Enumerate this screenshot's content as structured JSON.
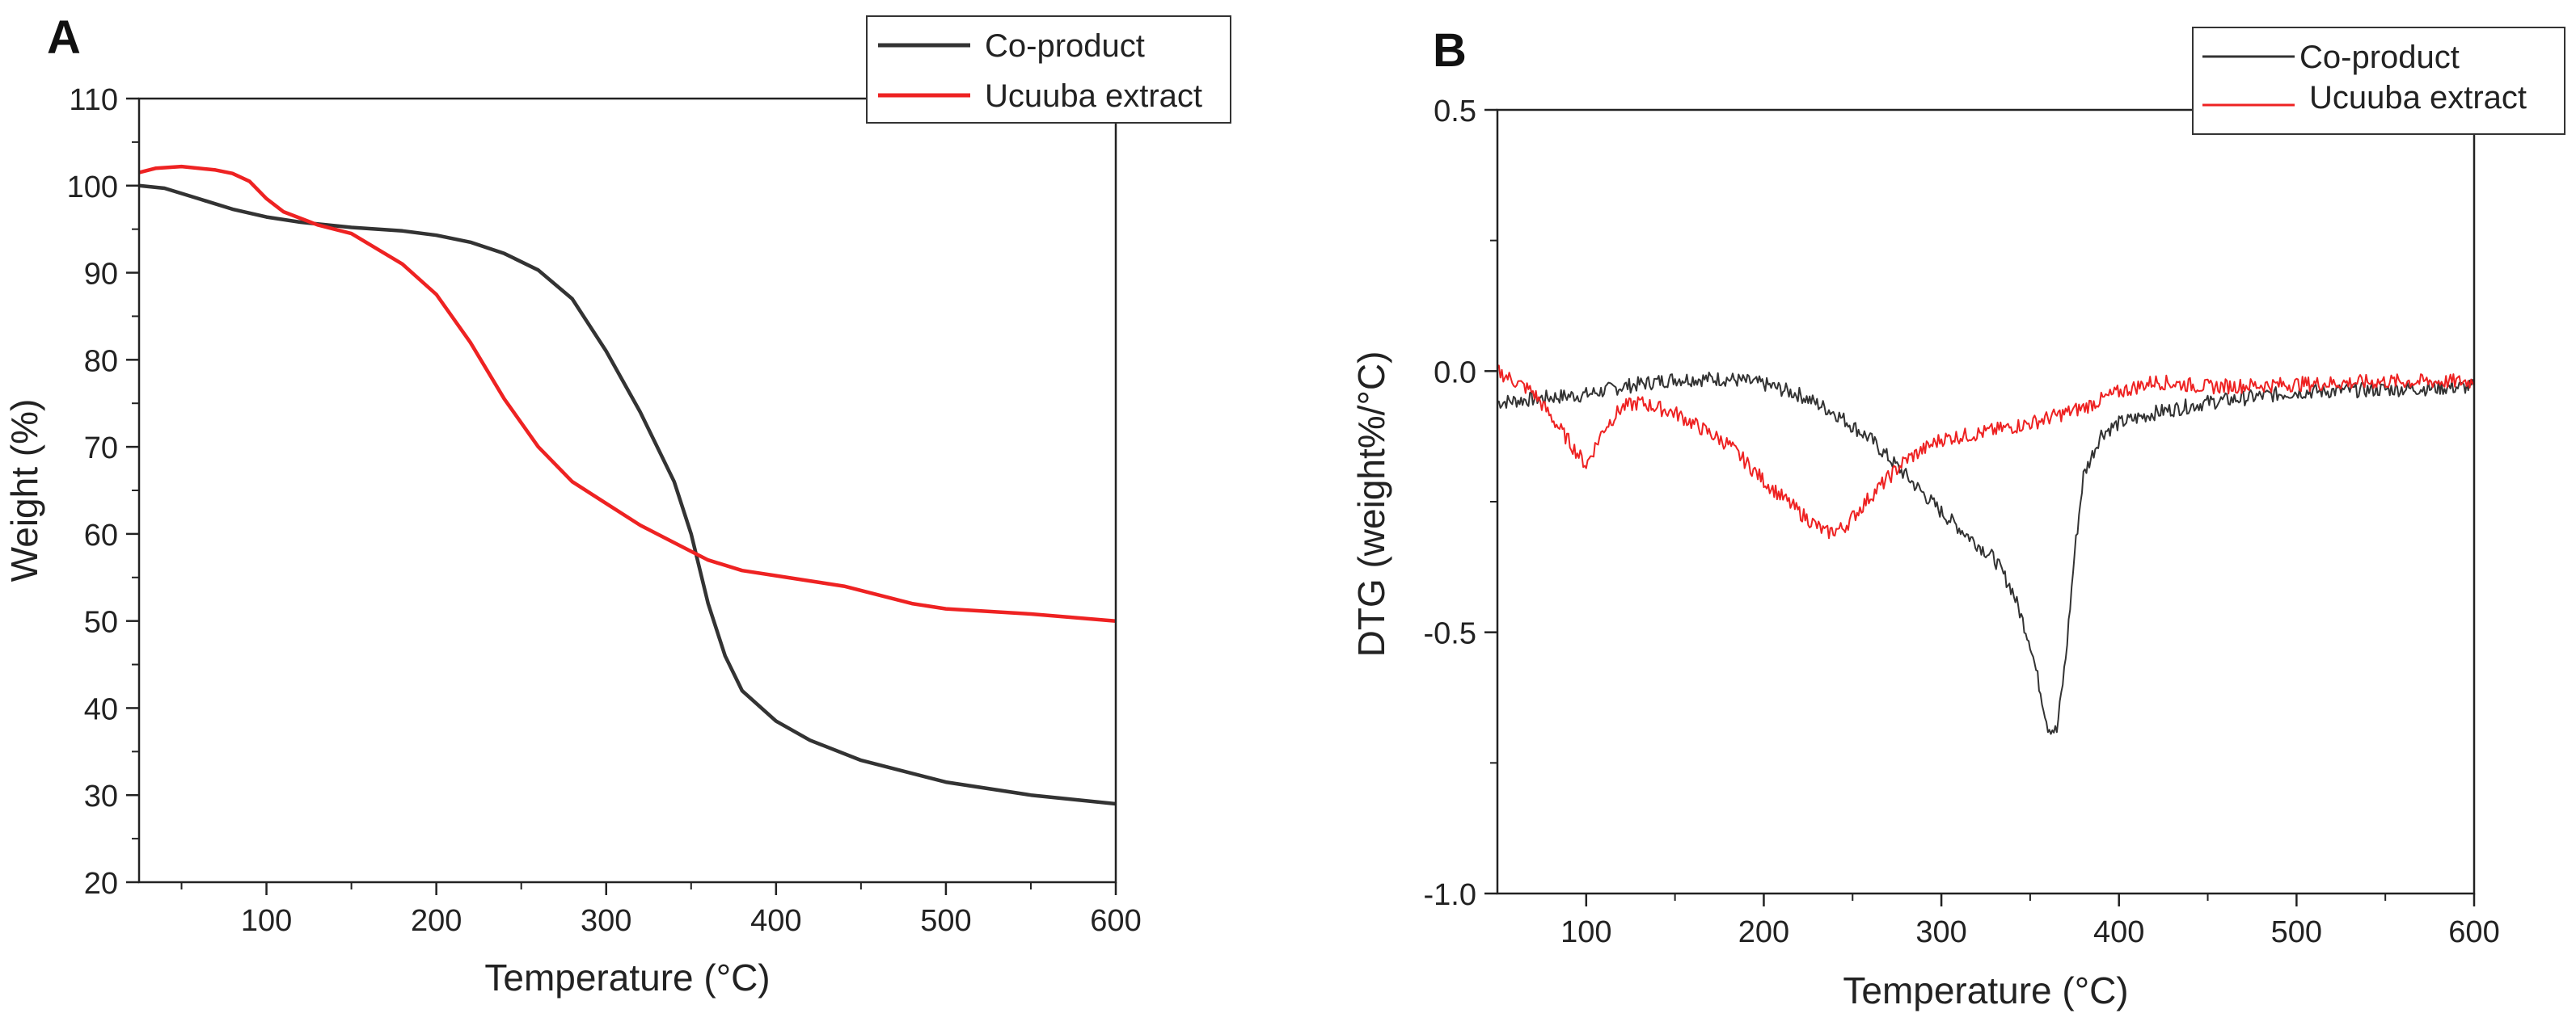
{
  "chart_data": [
    {
      "panel_label": "A",
      "type": "line",
      "xlabel": "Temperature (°C)",
      "ylabel": "Weight (%)",
      "xlim": [
        25,
        600
      ],
      "ylim": [
        20,
        110
      ],
      "x_ticks": [
        100,
        200,
        300,
        400,
        500,
        600
      ],
      "y_ticks": [
        20,
        30,
        40,
        50,
        60,
        70,
        80,
        90,
        100,
        110
      ],
      "legend_position": "top-right",
      "series": [
        {
          "name": "Co-product",
          "color": "#333333",
          "x": [
            25,
            40,
            60,
            80,
            100,
            120,
            150,
            180,
            200,
            220,
            240,
            260,
            280,
            300,
            320,
            340,
            350,
            360,
            370,
            380,
            400,
            420,
            450,
            500,
            550,
            600
          ],
          "y": [
            100,
            99.7,
            98.5,
            97.3,
            96.4,
            95.8,
            95.2,
            94.8,
            94.3,
            93.5,
            92.2,
            90.3,
            87,
            81,
            74,
            66,
            60,
            52,
            46,
            42,
            38.5,
            36.3,
            34,
            31.5,
            30,
            29
          ]
        },
        {
          "name": "Ucuuba extract",
          "color": "#ee2222",
          "x": [
            25,
            35,
            50,
            70,
            80,
            90,
            100,
            110,
            130,
            150,
            180,
            200,
            220,
            240,
            260,
            280,
            300,
            320,
            340,
            360,
            380,
            400,
            420,
            440,
            460,
            480,
            500,
            550,
            600
          ],
          "y": [
            101.5,
            102,
            102.2,
            101.8,
            101.4,
            100.5,
            98.5,
            97,
            95.5,
            94.5,
            91,
            87.5,
            82,
            75.5,
            70,
            66,
            63.5,
            61,
            59,
            57,
            55.8,
            55.2,
            54.6,
            54,
            53,
            52,
            51.4,
            50.8,
            50
          ]
        }
      ]
    },
    {
      "panel_label": "B",
      "type": "line",
      "xlabel": "Temperature (°C)",
      "ylabel": "DTG (weight%/°C)",
      "xlim": [
        50,
        600
      ],
      "ylim": [
        -1.0,
        0.5
      ],
      "x_ticks": [
        100,
        200,
        300,
        400,
        500,
        600
      ],
      "y_ticks": [
        -1.0,
        -0.5,
        0.0,
        0.5
      ],
      "y_tick_labels": [
        "-1.0",
        "-0.5",
        "0.0",
        "0.5"
      ],
      "legend_position": "top-right",
      "series": [
        {
          "name": "Co-product",
          "color": "#333333",
          "x": [
            50,
            80,
            100,
            120,
            150,
            180,
            200,
            220,
            240,
            260,
            280,
            300,
            320,
            330,
            340,
            350,
            360,
            365,
            370,
            375,
            380,
            390,
            400,
            420,
            450,
            500,
            550,
            600
          ],
          "y": [
            -0.06,
            -0.05,
            -0.045,
            -0.03,
            -0.015,
            -0.015,
            -0.025,
            -0.045,
            -0.08,
            -0.13,
            -0.2,
            -0.27,
            -0.33,
            -0.36,
            -0.42,
            -0.52,
            -0.68,
            -0.69,
            -0.55,
            -0.35,
            -0.2,
            -0.12,
            -0.1,
            -0.08,
            -0.06,
            -0.04,
            -0.035,
            -0.03
          ]
        },
        {
          "name": "Ucuuba extract",
          "color": "#ee2222",
          "x": [
            50,
            70,
            85,
            100,
            110,
            120,
            130,
            150,
            180,
            200,
            220,
            235,
            245,
            260,
            280,
            300,
            320,
            350,
            380,
            400,
            420,
            450,
            500,
            550,
            600
          ],
          "y": [
            0.0,
            -0.04,
            -0.11,
            -0.18,
            -0.11,
            -0.07,
            -0.06,
            -0.08,
            -0.14,
            -0.21,
            -0.27,
            -0.31,
            -0.3,
            -0.24,
            -0.17,
            -0.13,
            -0.12,
            -0.1,
            -0.07,
            -0.04,
            -0.02,
            -0.03,
            -0.025,
            -0.02,
            -0.02
          ]
        }
      ]
    }
  ]
}
